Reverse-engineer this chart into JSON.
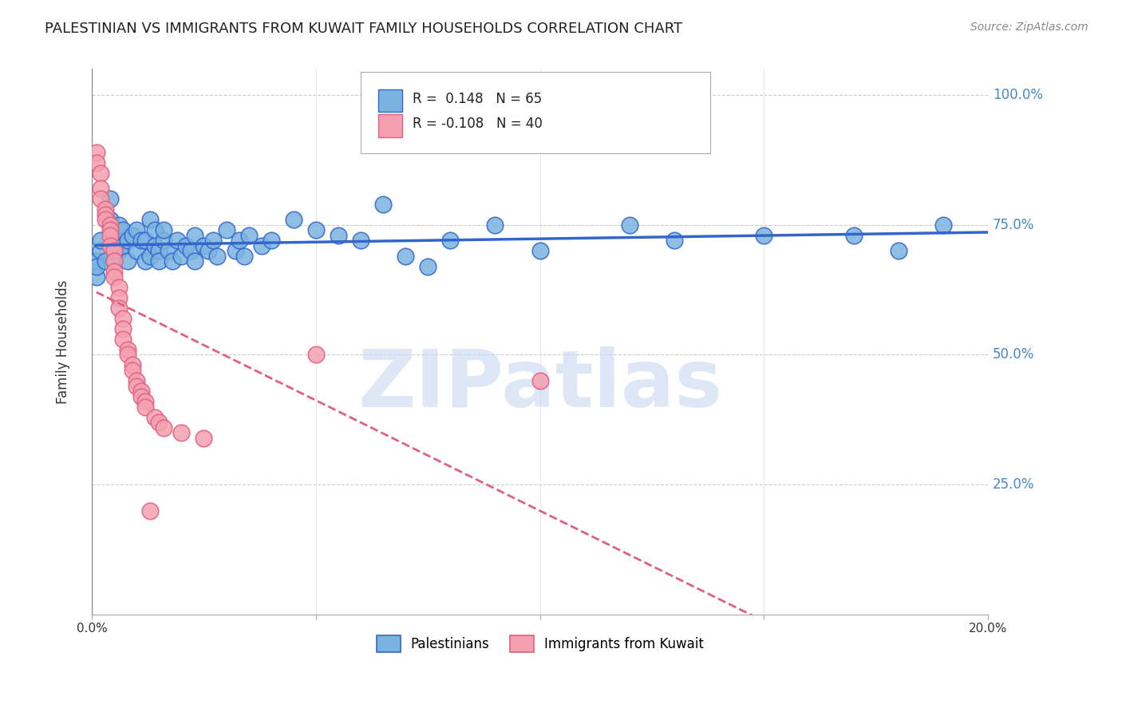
{
  "title": "PALESTINIAN VS IMMIGRANTS FROM KUWAIT FAMILY HOUSEHOLDS CORRELATION CHART",
  "source": "Source: ZipAtlas.com",
  "ylabel": "Family Households",
  "ytick_labels": [
    "100.0%",
    "75.0%",
    "50.0%",
    "25.0%"
  ],
  "ytick_values": [
    1.0,
    0.75,
    0.5,
    0.25
  ],
  "legend_r1_label": "R =  0.148   N = 65",
  "legend_r2_label": "R = -0.108   N = 40",
  "background_color": "#ffffff",
  "grid_color": "#cccccc",
  "blue_color": "#7ab3e0",
  "pink_color": "#f4a0b0",
  "blue_line_color": "#3366cc",
  "pink_line_color": "#e06080",
  "blue_scatter": [
    [
      0.001,
      0.68
    ],
    [
      0.002,
      0.7
    ],
    [
      0.001,
      0.65
    ],
    [
      0.001,
      0.67
    ],
    [
      0.002,
      0.72
    ],
    [
      0.003,
      0.68
    ],
    [
      0.004,
      0.8
    ],
    [
      0.004,
      0.76
    ],
    [
      0.005,
      0.73
    ],
    [
      0.005,
      0.68
    ],
    [
      0.006,
      0.75
    ],
    [
      0.006,
      0.7
    ],
    [
      0.007,
      0.74
    ],
    [
      0.007,
      0.71
    ],
    [
      0.008,
      0.72
    ],
    [
      0.008,
      0.68
    ],
    [
      0.009,
      0.73
    ],
    [
      0.01,
      0.7
    ],
    [
      0.01,
      0.74
    ],
    [
      0.011,
      0.72
    ],
    [
      0.012,
      0.68
    ],
    [
      0.012,
      0.72
    ],
    [
      0.013,
      0.76
    ],
    [
      0.013,
      0.69
    ],
    [
      0.014,
      0.74
    ],
    [
      0.014,
      0.71
    ],
    [
      0.015,
      0.7
    ],
    [
      0.015,
      0.68
    ],
    [
      0.016,
      0.72
    ],
    [
      0.016,
      0.74
    ],
    [
      0.017,
      0.7
    ],
    [
      0.018,
      0.68
    ],
    [
      0.019,
      0.72
    ],
    [
      0.02,
      0.69
    ],
    [
      0.021,
      0.71
    ],
    [
      0.022,
      0.7
    ],
    [
      0.023,
      0.73
    ],
    [
      0.023,
      0.68
    ],
    [
      0.025,
      0.71
    ],
    [
      0.026,
      0.7
    ],
    [
      0.027,
      0.72
    ],
    [
      0.028,
      0.69
    ],
    [
      0.03,
      0.74
    ],
    [
      0.032,
      0.7
    ],
    [
      0.033,
      0.72
    ],
    [
      0.034,
      0.69
    ],
    [
      0.035,
      0.73
    ],
    [
      0.038,
      0.71
    ],
    [
      0.04,
      0.72
    ],
    [
      0.045,
      0.76
    ],
    [
      0.05,
      0.74
    ],
    [
      0.055,
      0.73
    ],
    [
      0.06,
      0.72
    ],
    [
      0.065,
      0.79
    ],
    [
      0.07,
      0.69
    ],
    [
      0.075,
      0.67
    ],
    [
      0.08,
      0.72
    ],
    [
      0.09,
      0.75
    ],
    [
      0.1,
      0.7
    ],
    [
      0.12,
      0.75
    ],
    [
      0.13,
      0.72
    ],
    [
      0.15,
      0.73
    ],
    [
      0.17,
      0.73
    ],
    [
      0.18,
      0.7
    ],
    [
      0.19,
      0.75
    ]
  ],
  "pink_scatter": [
    [
      0.001,
      0.89
    ],
    [
      0.001,
      0.87
    ],
    [
      0.002,
      0.85
    ],
    [
      0.002,
      0.82
    ],
    [
      0.002,
      0.8
    ],
    [
      0.003,
      0.78
    ],
    [
      0.003,
      0.77
    ],
    [
      0.003,
      0.76
    ],
    [
      0.004,
      0.75
    ],
    [
      0.004,
      0.74
    ],
    [
      0.004,
      0.73
    ],
    [
      0.004,
      0.71
    ],
    [
      0.005,
      0.7
    ],
    [
      0.005,
      0.68
    ],
    [
      0.005,
      0.66
    ],
    [
      0.005,
      0.65
    ],
    [
      0.006,
      0.63
    ],
    [
      0.006,
      0.61
    ],
    [
      0.006,
      0.59
    ],
    [
      0.007,
      0.57
    ],
    [
      0.007,
      0.55
    ],
    [
      0.007,
      0.53
    ],
    [
      0.008,
      0.51
    ],
    [
      0.008,
      0.5
    ],
    [
      0.009,
      0.48
    ],
    [
      0.009,
      0.47
    ],
    [
      0.01,
      0.45
    ],
    [
      0.01,
      0.44
    ],
    [
      0.011,
      0.43
    ],
    [
      0.011,
      0.42
    ],
    [
      0.012,
      0.41
    ],
    [
      0.012,
      0.4
    ],
    [
      0.013,
      0.2
    ],
    [
      0.014,
      0.38
    ],
    [
      0.015,
      0.37
    ],
    [
      0.016,
      0.36
    ],
    [
      0.02,
      0.35
    ],
    [
      0.025,
      0.34
    ],
    [
      0.05,
      0.5
    ],
    [
      0.1,
      0.45
    ]
  ],
  "xlim": [
    0.0,
    0.2
  ],
  "ylim": [
    0.0,
    1.05
  ],
  "watermark": "ZIPatlas",
  "watermark_color": "#c8d8f0",
  "label_blue": "Palestinians",
  "label_pink": "Immigrants from Kuwait",
  "axis_label_color": "#4488cc",
  "tick_label_color": "#333333"
}
